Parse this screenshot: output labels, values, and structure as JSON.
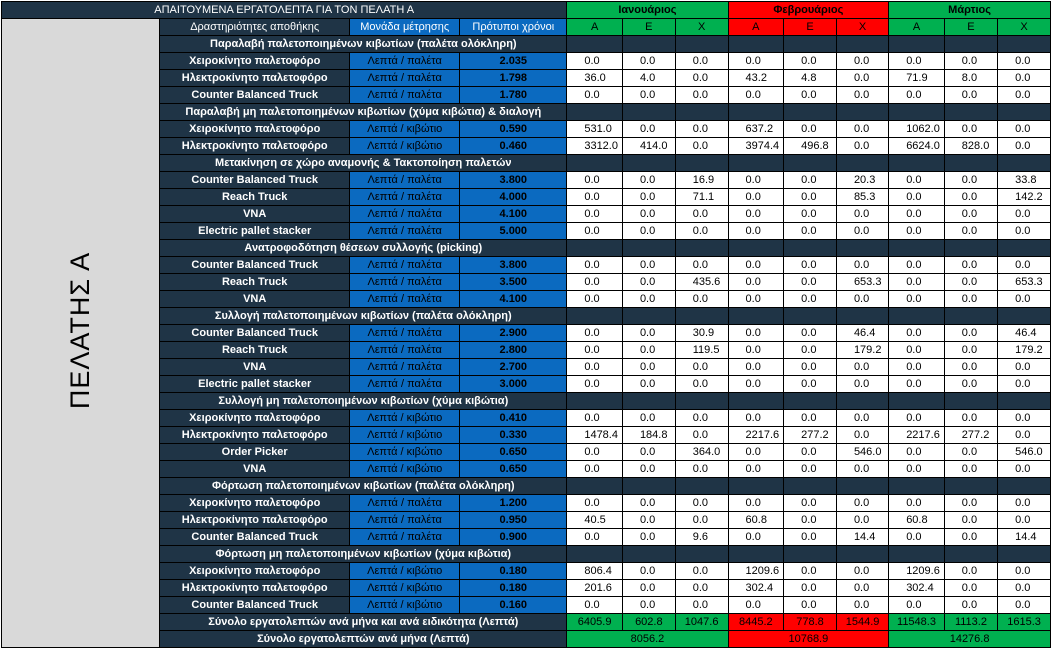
{
  "header": {
    "title": "ΑΠΑΙΤΟΥΜΕΝΑ ΕΡΓΑΤΟΛΕΠΤΑ ΓΙΑ ΤΟΝ ΠΕΛΑΤΗ Α",
    "col_activity": "Δραστηριότητες αποθήκης",
    "col_unit": "Μονάδα μέτρησης",
    "col_std": "Πρότυποι χρόνοι"
  },
  "customer_label": "ΠΕΛΑΤΗΣ Α",
  "months": [
    {
      "name": "Ιανουάριος",
      "grades": [
        "Α",
        "Ε",
        "Χ"
      ],
      "color": "#00b050"
    },
    {
      "name": "Φεβρουάριος",
      "grades": [
        "Α",
        "Ε",
        "Χ"
      ],
      "color": "#ff0000"
    },
    {
      "name": "Μάρτιος",
      "grades": [
        "Α",
        "Ε",
        "Χ"
      ],
      "color": "#00b050"
    }
  ],
  "sections": [
    {
      "title": "Παραλαβή παλετοποιημένων κιβωτίων (παλέτα ολόκληρη)",
      "rows": [
        {
          "activity": "Χειροκίνητο παλετοφόρο",
          "unit": "Λεπτά / παλέτα",
          "std": "2.035",
          "values": [
            "0.0",
            "0.0",
            "0.0",
            "0.0",
            "0.0",
            "0.0",
            "0.0",
            "0.0",
            "0.0"
          ]
        },
        {
          "activity": "Ηλεκτροκίνητο  παλετοφόρο",
          "unit": "Λεπτά / παλέτα",
          "std": "1.798",
          "values": [
            "36.0",
            "4.0",
            "0.0",
            "43.2",
            "4.8",
            "0.0",
            "71.9",
            "8.0",
            "0.0"
          ]
        },
        {
          "activity": "Counter Balanced Truck",
          "unit": "Λεπτά / παλέτα",
          "std": "1.780",
          "values": [
            "0.0",
            "0.0",
            "0.0",
            "0.0",
            "0.0",
            "0.0",
            "0.0",
            "0.0",
            "0.0"
          ]
        }
      ]
    },
    {
      "title": "Παραλαβή μη παλετοποιημένων κιβωτίων (χύμα κιβώτια) & διαλογή",
      "rows": [
        {
          "activity": "Χειροκίνητο παλετοφόρο",
          "unit": "Λεπτά / κιβώτιο",
          "std": "0.590",
          "values": [
            "531.0",
            "0.0",
            "0.0",
            "637.2",
            "0.0",
            "0.0",
            "1062.0",
            "0.0",
            "0.0"
          ]
        },
        {
          "activity": "Ηλεκτροκίνητο  παλετοφόρο",
          "unit": "Λεπτά / κιβώτιο",
          "std": "0.460",
          "values": [
            "3312.0",
            "414.0",
            "0.0",
            "3974.4",
            "496.8",
            "0.0",
            "6624.0",
            "828.0",
            "0.0"
          ]
        }
      ]
    },
    {
      "title": "Μετακίνηση σε χώρο αναμονής & Τακτοποίηση παλετών",
      "rows": [
        {
          "activity": "Counter Balanced Truck",
          "unit": "Λεπτά / παλέτα",
          "std": "3.800",
          "values": [
            "0.0",
            "0.0",
            "16.9",
            "0.0",
            "0.0",
            "20.3",
            "0.0",
            "0.0",
            "33.8"
          ]
        },
        {
          "activity": "Reach Truck",
          "unit": "Λεπτά / παλέτα",
          "std": "4.000",
          "values": [
            "0.0",
            "0.0",
            "71.1",
            "0.0",
            "0.0",
            "85.3",
            "0.0",
            "0.0",
            "142.2"
          ]
        },
        {
          "activity": "VNA",
          "unit": "Λεπτά / παλέτα",
          "std": "4.100",
          "values": [
            "0.0",
            "0.0",
            "0.0",
            "0.0",
            "0.0",
            "0.0",
            "0.0",
            "0.0",
            "0.0"
          ]
        },
        {
          "activity": "Electric pallet stacker",
          "unit": "Λεπτά / παλέτα",
          "std": "5.000",
          "values": [
            "0.0",
            "0.0",
            "0.0",
            "0.0",
            "0.0",
            "0.0",
            "0.0",
            "0.0",
            "0.0"
          ]
        }
      ]
    },
    {
      "title": "Ανατροφοδότηση θέσεων συλλογής (picking)",
      "rows": [
        {
          "activity": "Counter Balanced Truck",
          "unit": "Λεπτά / παλέτα",
          "std": "3.800",
          "values": [
            "0.0",
            "0.0",
            "0.0",
            "0.0",
            "0.0",
            "0.0",
            "0.0",
            "0.0",
            "0.0"
          ]
        },
        {
          "activity": "Reach Truck",
          "unit": "Λεπτά / παλέτα",
          "std": "3.500",
          "values": [
            "0.0",
            "0.0",
            "435.6",
            "0.0",
            "0.0",
            "653.3",
            "0.0",
            "0.0",
            "653.3"
          ]
        },
        {
          "activity": "VNA",
          "unit": "Λεπτά / παλέτα",
          "std": "4.100",
          "values": [
            "0.0",
            "0.0",
            "0.0",
            "0.0",
            "0.0",
            "0.0",
            "0.0",
            "0.0",
            "0.0"
          ]
        }
      ]
    },
    {
      "title": "Συλλογή παλετοποιημένων κιβωτίων (παλέτα ολόκληρη)",
      "rows": [
        {
          "activity": "Counter Balanced Truck",
          "unit": "Λεπτά / παλέτα",
          "std": "2.900",
          "values": [
            "0.0",
            "0.0",
            "30.9",
            "0.0",
            "0.0",
            "46.4",
            "0.0",
            "0.0",
            "46.4"
          ]
        },
        {
          "activity": "Reach Truck",
          "unit": "Λεπτά / παλέτα",
          "std": "2.800",
          "values": [
            "0.0",
            "0.0",
            "119.5",
            "0.0",
            "0.0",
            "179.2",
            "0.0",
            "0.0",
            "179.2"
          ]
        },
        {
          "activity": "VNA",
          "unit": "Λεπτά / παλέτα",
          "std": "2.700",
          "values": [
            "0.0",
            "0.0",
            "0.0",
            "0.0",
            "0.0",
            "0.0",
            "0.0",
            "0.0",
            "0.0"
          ]
        },
        {
          "activity": "Electric pallet stacker",
          "unit": "Λεπτά / παλέτα",
          "std": "3.000",
          "values": [
            "0.0",
            "0.0",
            "0.0",
            "0.0",
            "0.0",
            "0.0",
            "0.0",
            "0.0",
            "0.0"
          ]
        }
      ]
    },
    {
      "title": "Συλλογή μη παλετοποιημένων κιβωτίων (χύμα κιβώτια)",
      "rows": [
        {
          "activity": "Χειροκίνητο παλετοφόρο",
          "unit": "Λεπτά / κιβώτιο",
          "std": "0.410",
          "values": [
            "0.0",
            "0.0",
            "0.0",
            "0.0",
            "0.0",
            "0.0",
            "0.0",
            "0.0",
            "0.0"
          ]
        },
        {
          "activity": "Ηλεκτροκίνητο  παλετοφόρο",
          "unit": "Λεπτά / κιβώτιο",
          "std": "0.330",
          "values": [
            "1478.4",
            "184.8",
            "0.0",
            "2217.6",
            "277.2",
            "0.0",
            "2217.6",
            "277.2",
            "0.0"
          ]
        },
        {
          "activity": "Order Picker",
          "unit": "Λεπτά / κιβώτιο",
          "std": "0.650",
          "values": [
            "0.0",
            "0.0",
            "364.0",
            "0.0",
            "0.0",
            "546.0",
            "0.0",
            "0.0",
            "546.0"
          ]
        },
        {
          "activity": "VNA",
          "unit": "Λεπτά / κιβώτιο",
          "std": "0.650",
          "values": [
            "0.0",
            "0.0",
            "0.0",
            "0.0",
            "0.0",
            "0.0",
            "0.0",
            "0.0",
            "0.0"
          ]
        }
      ]
    },
    {
      "title": "Φόρτωση παλετοποιημένων κιβωτίων (παλέτα ολόκληρη)",
      "rows": [
        {
          "activity": "Χειροκίνητο παλετοφόρο",
          "unit": "Λεπτά / παλέτα",
          "std": "1.200",
          "values": [
            "0.0",
            "0.0",
            "0.0",
            "0.0",
            "0.0",
            "0.0",
            "0.0",
            "0.0",
            "0.0"
          ]
        },
        {
          "activity": "Ηλεκτροκίνητο  παλετοφόρο",
          "unit": "Λεπτά / παλέτα",
          "std": "0.950",
          "values": [
            "40.5",
            "0.0",
            "0.0",
            "60.8",
            "0.0",
            "0.0",
            "60.8",
            "0.0",
            "0.0"
          ]
        },
        {
          "activity": "Counter Balanced Truck",
          "unit": "Λεπτά / παλέτα",
          "std": "0.900",
          "values": [
            "0.0",
            "0.0",
            "9.6",
            "0.0",
            "0.0",
            "14.4",
            "0.0",
            "0.0",
            "14.4"
          ]
        }
      ]
    },
    {
      "title": "Φόρτωση μη παλετοποιημένων κιβωτίων (χύμα κιβώτια)",
      "rows": [
        {
          "activity": "Χειροκίνητο παλετοφόρο",
          "unit": "Λεπτά / κιβώτιο",
          "std": "0.180",
          "values": [
            "806.4",
            "0.0",
            "0.0",
            "1209.6",
            "0.0",
            "0.0",
            "1209.6",
            "0.0",
            "0.0"
          ]
        },
        {
          "activity": "Ηλεκτροκίνητο  παλετοφόρο",
          "unit": "Λεπτά / κιβώτιο",
          "std": "0.180",
          "values": [
            "201.6",
            "0.0",
            "0.0",
            "302.4",
            "0.0",
            "0.0",
            "302.4",
            "0.0",
            "0.0"
          ]
        },
        {
          "activity": "Counter Balanced Truck",
          "unit": "Λεπτά / κιβώτιο",
          "std": "0.160",
          "values": [
            "0.0",
            "0.0",
            "0.0",
            "0.0",
            "0.0",
            "0.0",
            "0.0",
            "0.0",
            "0.0"
          ]
        }
      ]
    }
  ],
  "totals": {
    "by_grade_label": "Σύνολο εργατολεπτών ανά μήνα και ανά ειδικότητα (Λεπτά)",
    "by_grade": [
      "6405.9",
      "602.8",
      "1047.6",
      "8445.2",
      "778.8",
      "1544.9",
      "11548.3",
      "1113.2",
      "1615.3"
    ],
    "by_month_label": "Σύνολο εργατολεπτών ανά μήνα (Λεπτά)",
    "by_month": [
      "8056.2",
      "10768.9",
      "14276.8"
    ]
  }
}
